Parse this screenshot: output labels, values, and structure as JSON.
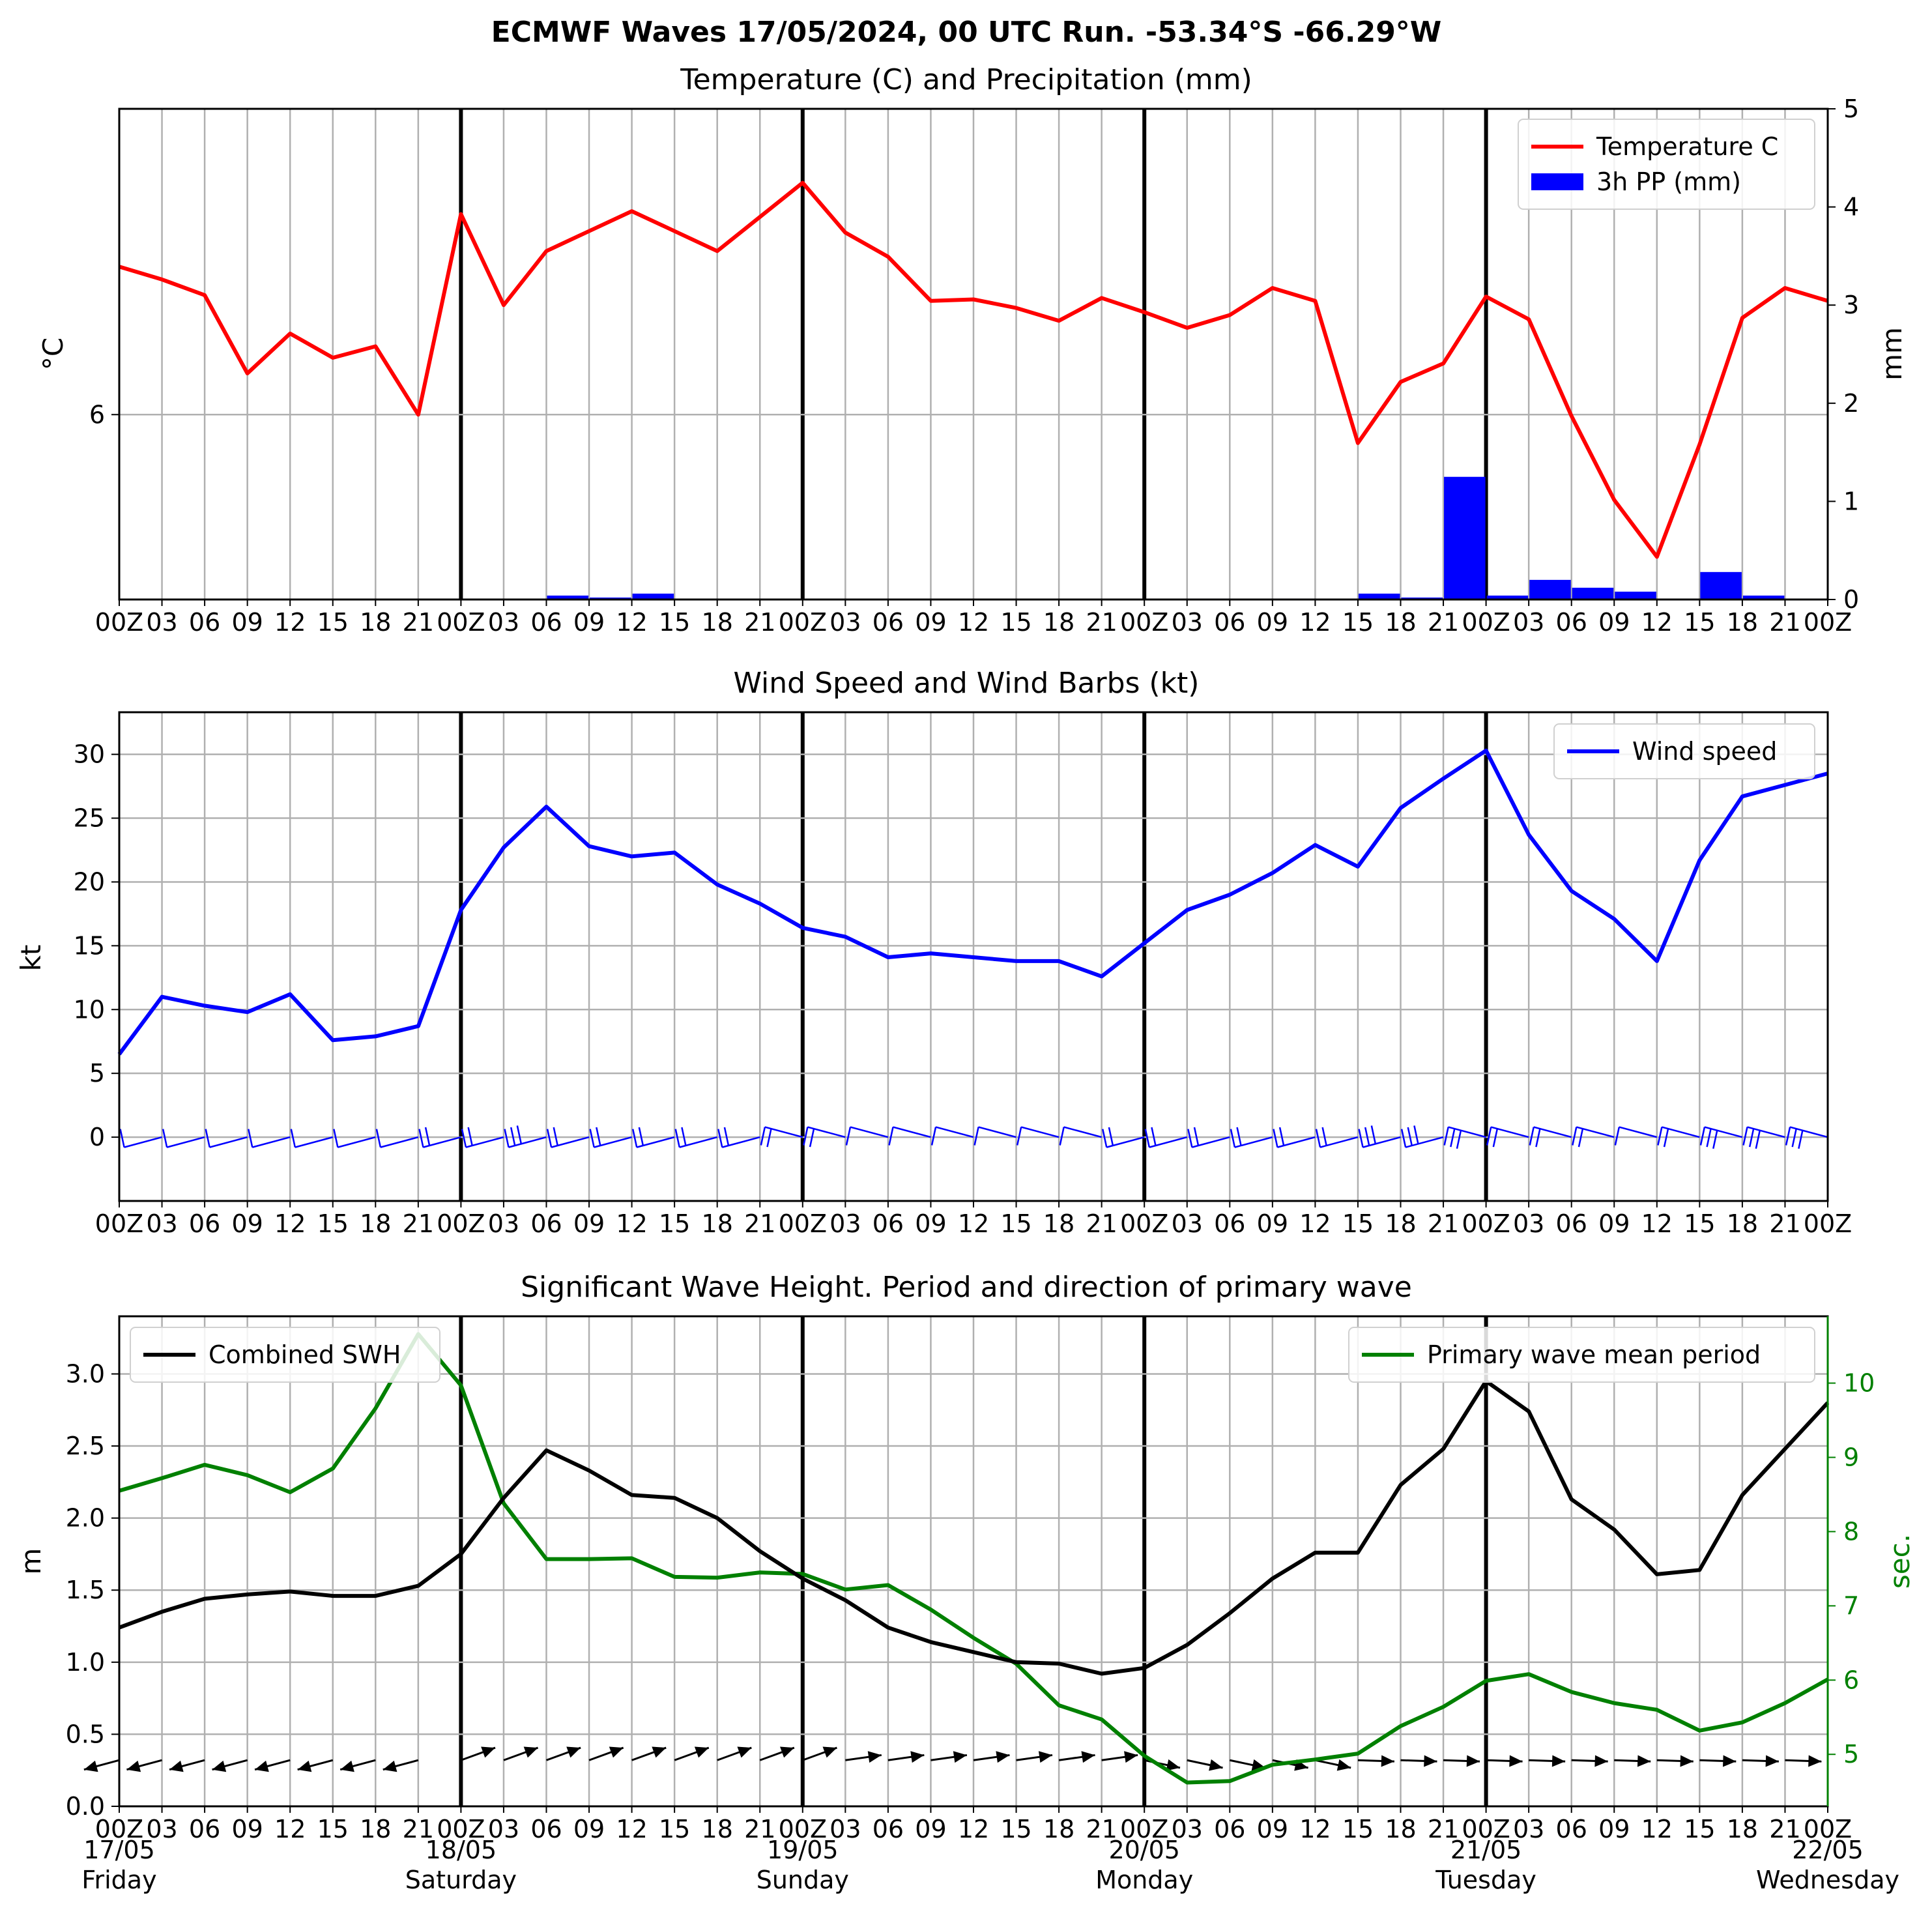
{
  "suptitle": "ECMWF Waves 17/05/2024, 00 UTC Run. -53.34°S -66.29°W",
  "colors": {
    "temperature": "#ff0000",
    "precip": "#0000ff",
    "wind": "#0000ff",
    "swh": "#000000",
    "period": "#008000",
    "grid": "#b0b0b0"
  },
  "hour_tick_labels": [
    "00Z",
    "03",
    "06",
    "09",
    "12",
    "15",
    "18",
    "21",
    "00Z",
    "03",
    "06",
    "09",
    "12",
    "15",
    "18",
    "21",
    "00Z",
    "03",
    "06",
    "09",
    "12",
    "15",
    "18",
    "21",
    "00Z",
    "03",
    "06",
    "09",
    "12",
    "15",
    "18",
    "21",
    "00Z",
    "03",
    "06",
    "09",
    "12",
    "15",
    "18",
    "21",
    "00Z"
  ],
  "day_labels": [
    {
      "date": "17/05",
      "weekday": "Friday"
    },
    {
      "date": "18/05",
      "weekday": "Saturday"
    },
    {
      "date": "19/05",
      "weekday": "Sunday"
    },
    {
      "date": "20/05",
      "weekday": "Monday"
    },
    {
      "date": "21/05",
      "weekday": "Tuesday"
    },
    {
      "date": "22/05",
      "weekday": "Wednesday"
    }
  ],
  "chart_data": [
    {
      "type": "line",
      "title": "Temperature (C) and Precipitation (mm)",
      "x_step_hours": 3,
      "ylabel": "°C",
      "ylabel_right": "mm",
      "y_ticks": [
        6
      ],
      "ylim": [
        4.7,
        8.15
      ],
      "y2_ticks": [
        0,
        1,
        2,
        3,
        4,
        5
      ],
      "y2lim": [
        0,
        5
      ],
      "legend_position": "upper right",
      "grid": true,
      "series": [
        {
          "name": "Temperature C",
          "type": "line",
          "axis": "left",
          "values": [
            7.04,
            6.95,
            6.84,
            6.29,
            6.57,
            6.4,
            6.48,
            6.0,
            7.41,
            6.77,
            7.15,
            7.29,
            7.43,
            7.29,
            7.15,
            7.39,
            7.63,
            7.28,
            7.11,
            6.8,
            6.81,
            6.75,
            6.66,
            6.82,
            6.72,
            6.61,
            6.7,
            6.89,
            6.8,
            5.8,
            6.23,
            6.36,
            6.83,
            6.67,
            5.99,
            5.4,
            5.0,
            5.79,
            6.68,
            6.89,
            6.8
          ]
        },
        {
          "name": "3h PP (mm)",
          "type": "bar",
          "axis": "right",
          "values": [
            0,
            0,
            0,
            0,
            0,
            0,
            0,
            0,
            0,
            0,
            0.04,
            0.02,
            0.06,
            0,
            0,
            0,
            0,
            0,
            0,
            0,
            0,
            0,
            0,
            0,
            0,
            0.01,
            0,
            0.01,
            0,
            0.06,
            0.02,
            1.25,
            0.04,
            0.2,
            0.12,
            0.08,
            0,
            0.28,
            0.04,
            0.01
          ]
        }
      ]
    },
    {
      "type": "line",
      "title": "Wind Speed and Wind Barbs (kt)",
      "x_step_hours": 3,
      "ylabel": "kt",
      "y_ticks": [
        0,
        5,
        10,
        15,
        20,
        25,
        30
      ],
      "ylim": [
        -5,
        33.3
      ],
      "legend_position": "upper right",
      "grid": true,
      "series": [
        {
          "name": "Wind speed",
          "values": [
            6.5,
            11.0,
            10.3,
            9.8,
            11.2,
            7.6,
            7.9,
            8.7,
            17.8,
            22.7,
            25.9,
            22.8,
            22.0,
            22.3,
            19.8,
            18.3,
            16.4,
            15.7,
            14.1,
            14.4,
            14.1,
            13.8,
            13.8,
            12.6,
            15.2,
            17.8,
            19.0,
            20.7,
            22.9,
            21.2,
            25.8,
            28.1,
            30.3,
            23.7,
            19.3,
            17.1,
            13.8,
            21.7,
            26.7,
            27.6,
            28.5
          ]
        }
      ]
    },
    {
      "type": "line",
      "title": "Significant Wave Height. Period and direction of primary wave",
      "x_step_hours": 3,
      "ylabel": "m",
      "ylabel_right": "sec.",
      "y_ticks": [
        0.0,
        0.5,
        1.0,
        1.5,
        2.0,
        2.5,
        3.0
      ],
      "ylim": [
        0,
        3.4
      ],
      "y2_ticks": [
        5,
        6,
        7,
        8,
        9,
        10
      ],
      "y2lim": [
        4.3,
        10.9
      ],
      "grid": true,
      "series": [
        {
          "name": "Combined SWH",
          "axis": "left",
          "legend_position": "upper left",
          "values": [
            1.24,
            1.35,
            1.44,
            1.47,
            1.49,
            1.46,
            1.46,
            1.53,
            1.75,
            2.14,
            2.47,
            2.33,
            2.16,
            2.14,
            2.0,
            1.77,
            1.58,
            1.43,
            1.24,
            1.14,
            1.07,
            1.0,
            0.99,
            0.92,
            0.96,
            1.12,
            1.34,
            1.58,
            1.76,
            1.76,
            2.23,
            2.48,
            2.95,
            2.74,
            2.13,
            1.92,
            1.61,
            1.64,
            2.16,
            2.48,
            2.8
          ]
        },
        {
          "name": "Primary wave mean period",
          "axis": "right",
          "legend_position": "upper right",
          "values": [
            8.55,
            8.72,
            8.9,
            8.76,
            8.53,
            8.85,
            9.66,
            10.66,
            9.97,
            8.38,
            7.63,
            7.63,
            7.64,
            7.39,
            7.38,
            7.45,
            7.43,
            7.22,
            7.28,
            6.95,
            6.57,
            6.22,
            5.66,
            5.47,
            4.98,
            4.62,
            4.64,
            4.86,
            4.93,
            5.01,
            5.38,
            5.64,
            5.99,
            6.08,
            5.84,
            5.69,
            5.6,
            5.32,
            5.43,
            5.69,
            6.01
          ]
        }
      ]
    }
  ]
}
